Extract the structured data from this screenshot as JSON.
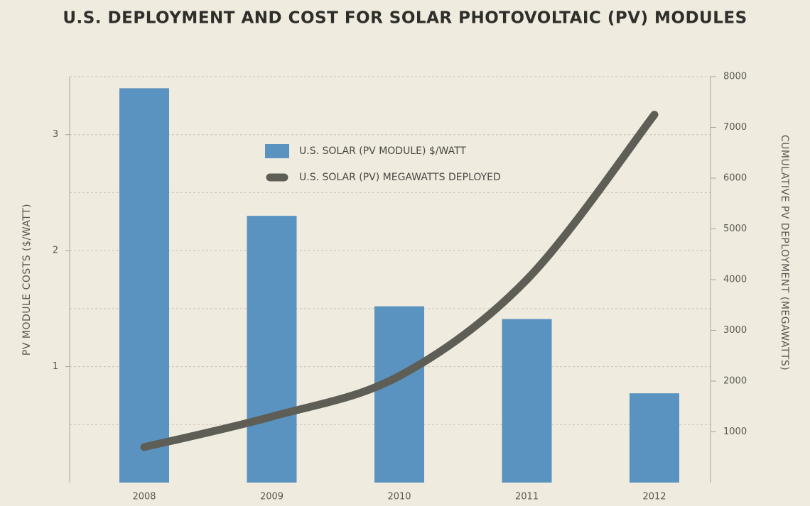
{
  "chart_data": {
    "type": "bar_line",
    "title": "U.S. DEPLOYMENT AND COST FOR SOLAR PHOTOVOLTAIC (PV) MODULES",
    "y_label": "PV MODULE COSTS ($/WATT)",
    "y2_label": "CUMULATIVE PV DEPLOYMENT (MEGAWATTS)",
    "categories": [
      "2008",
      "2009",
      "2010",
      "2011",
      "2012"
    ],
    "series": [
      {
        "name": "U.S. SOLAR (PV MODULE) $/WATT",
        "type": "bar",
        "color": "#5b93c0",
        "values": [
          3.4,
          2.3,
          1.52,
          1.41,
          0.77
        ]
      },
      {
        "name": "U.S. SOLAR (PV) MEGAWATTS DEPLOYED",
        "type": "line",
        "axis": "y2",
        "color": "#5e5e56",
        "values": [
          700,
          1300,
          2100,
          4000,
          7250
        ]
      }
    ],
    "ylim": [
      0,
      3.5
    ],
    "yticks": [
      1,
      2,
      3
    ],
    "minor_yticks": [
      0.5,
      1.5,
      2.5,
      3.5
    ],
    "y2lim": [
      0,
      8000
    ],
    "y2ticks": [
      1000,
      2000,
      3000,
      4000,
      5000,
      6000,
      7000,
      8000
    ],
    "grid": true
  }
}
